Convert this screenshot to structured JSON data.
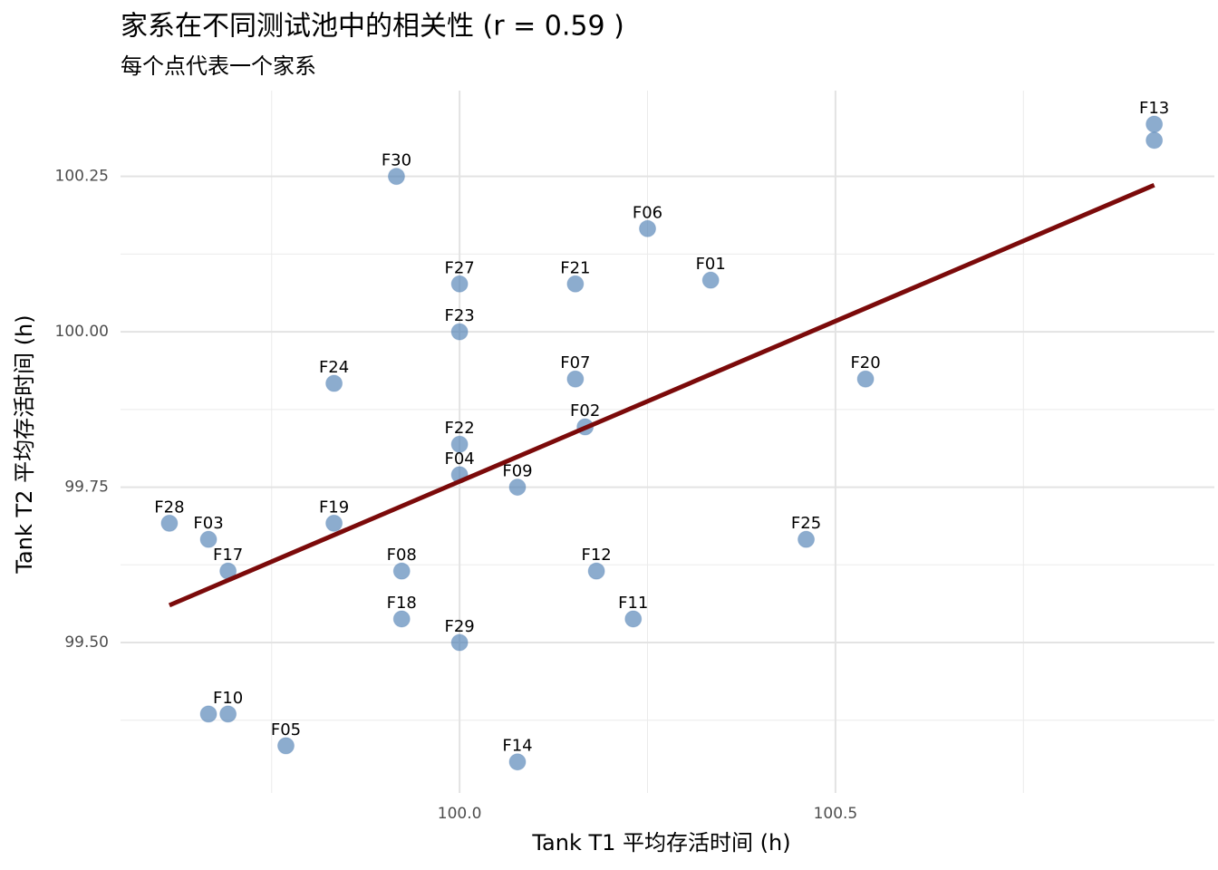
{
  "chart_data": {
    "type": "scatter",
    "title": "家系在不同测试池中的相关性 (r = 0.59 )",
    "subtitle": "每个点代表一个家系",
    "x_label": "Tank T1 平均存活时间 (h)",
    "y_label": "Tank T2 平均存活时间 (h)",
    "xlim": [
      99.549,
      101.004
    ],
    "ylim": [
      99.258,
      100.388
    ],
    "xticks": [
      {
        "value": 100,
        "label": "100.0"
      },
      {
        "value": 100.5,
        "label": "100.5"
      }
    ],
    "yticks": [
      {
        "value": 99.5,
        "label": "99.50"
      },
      {
        "value": 99.75,
        "label": "99.75"
      },
      {
        "value": 100,
        "label": "100.00"
      },
      {
        "value": 100.25,
        "label": "100.25"
      }
    ],
    "x_minor_ticks": [
      99.75,
      100.25,
      100.75
    ],
    "y_minor_ticks": [
      99.375,
      99.625,
      99.875,
      100.125
    ],
    "grid": true,
    "color": "#4e7fb3",
    "point_labels": [
      "F13",
      null,
      "F30",
      "F06",
      "F27",
      "F21",
      "F01",
      "F23",
      "F24",
      "F07",
      "F20",
      "F02",
      "F22",
      "F04",
      "F09",
      "F28",
      "F03",
      "F19",
      "F17",
      "F08",
      "F12",
      "F25",
      "F18",
      "F11",
      "F29",
      null,
      "F10",
      "F05",
      "F14"
    ],
    "x": [
      100.924,
      100.924,
      99.916,
      100.25,
      100.0,
      100.154,
      100.334,
      100.0,
      99.833,
      100.154,
      100.54,
      100.167,
      100.0,
      100.0,
      100.077,
      99.614,
      99.666,
      99.833,
      99.692,
      99.923,
      100.182,
      100.461,
      99.923,
      100.231,
      100.0,
      99.666,
      99.692,
      99.769,
      100.077
    ],
    "y": [
      100.334,
      100.308,
      100.25,
      100.166,
      100.077,
      100.077,
      100.083,
      100.0,
      99.917,
      99.924,
      99.924,
      99.847,
      99.819,
      99.77,
      99.75,
      99.692,
      99.666,
      99.692,
      99.615,
      99.615,
      99.615,
      99.666,
      99.538,
      99.538,
      99.5,
      99.385,
      99.385,
      99.334,
      99.308
    ],
    "fit_line": {
      "x": [
        99.614,
        100.924
      ],
      "y": [
        99.56,
        100.236
      ],
      "color": "#7b0a0a"
    }
  }
}
